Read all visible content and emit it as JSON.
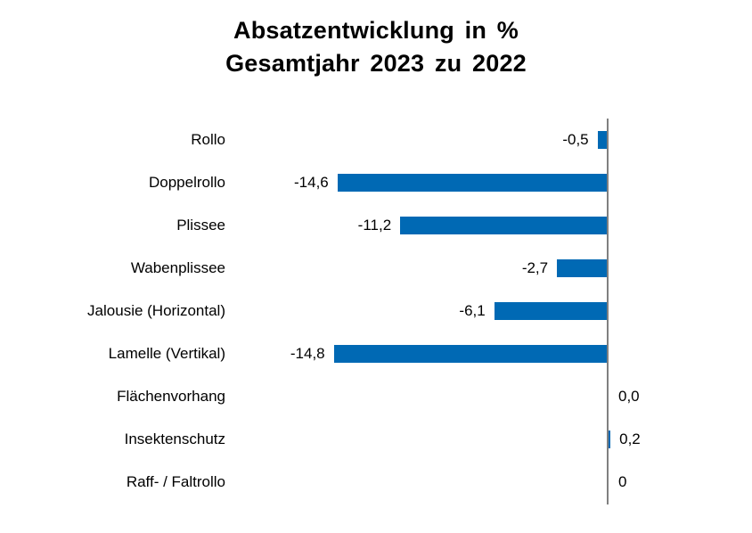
{
  "title": {
    "line1": "Absatzentwicklung in %",
    "line2": "Gesamtjahr 2023 zu 2022"
  },
  "chart_data": {
    "type": "bar",
    "orientation": "horizontal",
    "title": "Absatzentwicklung in % Gesamtjahr 2023 zu 2022",
    "categories": [
      "Rollo",
      "Doppelrollo",
      "Plissee",
      "Wabenplissee",
      "Jalousie (Horizontal)",
      "Lamelle (Vertikal)",
      "Flächenvorhang",
      "Insektenschutz",
      "Raff- / Faltrollo"
    ],
    "values": [
      -0.5,
      -14.6,
      -11.2,
      -2.7,
      -6.1,
      -14.8,
      0.0,
      0.2,
      0
    ],
    "value_labels": [
      "-0,5",
      "-14,6",
      "-11,2",
      "-2,7",
      "-6,1",
      "-14,8",
      "0,0",
      "0,2",
      "0"
    ],
    "xlabel": "",
    "ylabel": "",
    "grid": "off",
    "legend": "none",
    "baseline": 0,
    "bar_color": "#0069B4",
    "axis_color": "#808080",
    "text_color": "#000000"
  }
}
